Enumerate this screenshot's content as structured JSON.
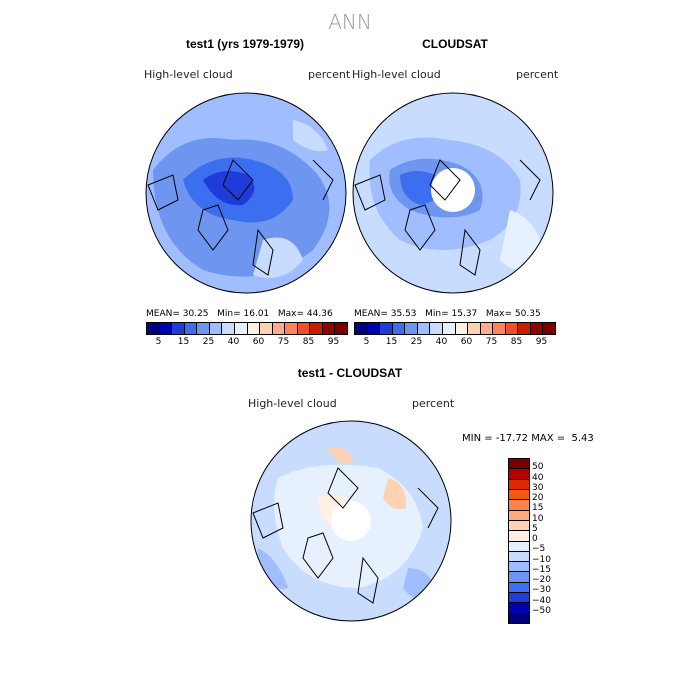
{
  "title": "ANN",
  "panels": [
    {
      "title": "test1 (yrs 1979-1979)",
      "variable": "High-level cloud",
      "units": "percent",
      "stats": {
        "mean_label": "MEAN=",
        "mean": "30.25",
        "min_label": "Min=",
        "min": "16.01",
        "max_label": "Max=",
        "max": "44.36"
      }
    },
    {
      "title": "CLOUDSAT",
      "variable": "High-level cloud",
      "units": "percent",
      "stats": {
        "mean_label": "MEAN=",
        "mean": "35.53",
        "min_label": "Min=",
        "min": "15.37",
        "max_label": "Max=",
        "max": "50.35"
      }
    },
    {
      "title": "test1 - CLOUDSAT",
      "variable": "High-level cloud",
      "units": "percent",
      "stats": {
        "min_label": "MIN =",
        "min": "-17.72",
        "max_label": "MAX =",
        "max": "5.43"
      }
    }
  ],
  "colorbar_abs": {
    "labels": [
      "5",
      "15",
      "25",
      "40",
      "60",
      "75",
      "85",
      "95"
    ],
    "colors": [
      "#00007a",
      "#0000b4",
      "#1e3cdc",
      "#3c6ef0",
      "#6e96f0",
      "#a0beff",
      "#c8dcff",
      "#e6f0ff",
      "#fff0e6",
      "#ffd2b4",
      "#ffaa8c",
      "#ff825a",
      "#f05028",
      "#c81e00",
      "#960000",
      "#7a0000"
    ]
  },
  "colorbar_diff": {
    "labels": [
      "50",
      "40",
      "30",
      "20",
      "15",
      "10",
      "5",
      "0",
      "−5",
      "−10",
      "−15",
      "−20",
      "−30",
      "−40",
      "−50"
    ],
    "colors": [
      "#7a0000",
      "#b40000",
      "#dc2800",
      "#f05a14",
      "#ff824b",
      "#ffaa7d",
      "#ffd2b4",
      "#fff0e6",
      "#e6f0ff",
      "#c8dcff",
      "#a0beff",
      "#6e96f0",
      "#3c6ef0",
      "#1e3cdc",
      "#0000b4",
      "#00007a"
    ]
  }
}
